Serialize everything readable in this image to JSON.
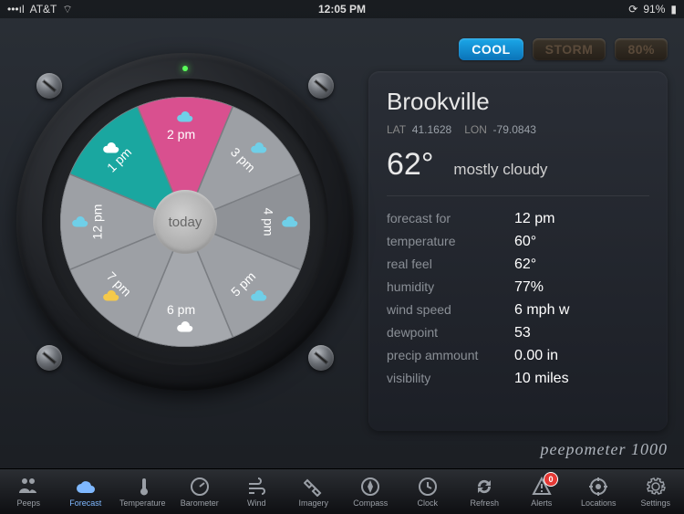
{
  "status": {
    "carrier": "AT&T",
    "time": "12:05 PM",
    "battery": "91%",
    "wifi": true
  },
  "chips": {
    "cool": "COOL",
    "storm": "STORM",
    "humidity": "80%"
  },
  "location": {
    "name": "Brookville",
    "lat_label": "LAT",
    "lat": "41.1628",
    "lon_label": "LON",
    "lon": "-79.0843"
  },
  "current": {
    "temp": "62°",
    "condition": "mostly cloudy"
  },
  "details": [
    {
      "k": "forecast for",
      "v": "12 pm"
    },
    {
      "k": "temperature",
      "v": "60°"
    },
    {
      "k": "real feel",
      "v": "62°"
    },
    {
      "k": "humidity",
      "v": "77%"
    },
    {
      "k": "wind speed",
      "v": "6 mph w"
    },
    {
      "k": "dewpoint",
      "v": "53"
    },
    {
      "k": "precip ammount",
      "v": "0.00 in"
    },
    {
      "k": "visibility",
      "v": "10 miles"
    }
  ],
  "brand": "peepometer 1000",
  "dial": {
    "hub_label": "today",
    "segment_count": 8,
    "segments": [
      {
        "label": "12 pm",
        "start": -112.5,
        "fill": "#9da0a5",
        "icon_color": "#6fcfe8"
      },
      {
        "label": "1 pm",
        "start": -67.5,
        "fill": "#1aa7a0",
        "icon_color": "#ffffff"
      },
      {
        "label": "2 pm",
        "start": -22.5,
        "fill": "#d9508f",
        "icon_color": "#6fcfe8"
      },
      {
        "label": "3 pm",
        "start": 22.5,
        "fill": "#9da0a5",
        "icon_color": "#6fcfe8"
      },
      {
        "label": "4 pm",
        "start": 67.5,
        "fill": "#8f9297",
        "icon_color": "#6fcfe8"
      },
      {
        "label": "5 pm",
        "start": 112.5,
        "fill": "#9da0a5",
        "icon_color": "#6fcfe8"
      },
      {
        "label": "6 pm",
        "start": 157.5,
        "fill": "#a5a8ad",
        "icon_color": "#ffffff"
      },
      {
        "label": "7 pm",
        "start": 202.5,
        "fill": "#9da0a5",
        "icon_color": "#f5c94a"
      }
    ],
    "face_radius": 137,
    "hub_radius": 35,
    "stroke": "#7a7d82",
    "stroke_width": 1.5
  },
  "tabs": [
    {
      "id": "peeps",
      "label": "Peeps",
      "icon": "users"
    },
    {
      "id": "forecast",
      "label": "Forecast",
      "icon": "cloud",
      "active": true
    },
    {
      "id": "temperature",
      "label": "Temperature",
      "icon": "thermo"
    },
    {
      "id": "barometer",
      "label": "Barometer",
      "icon": "gauge"
    },
    {
      "id": "wind",
      "label": "Wind",
      "icon": "wind"
    },
    {
      "id": "imagery",
      "label": "Imagery",
      "icon": "sat"
    },
    {
      "id": "compass",
      "label": "Compass",
      "icon": "compass"
    },
    {
      "id": "clock",
      "label": "Clock",
      "icon": "clock"
    },
    {
      "id": "refresh",
      "label": "Refresh",
      "icon": "refresh"
    },
    {
      "id": "alerts",
      "label": "Alerts",
      "icon": "alert",
      "badge": "0"
    },
    {
      "id": "locations",
      "label": "Locations",
      "icon": "target"
    },
    {
      "id": "settings",
      "label": "Settings",
      "icon": "gear"
    }
  ]
}
